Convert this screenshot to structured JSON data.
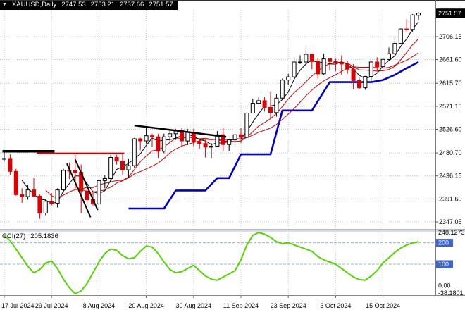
{
  "header": {
    "collapse_icon": "▼",
    "symbol": "XAUUSD,Daily",
    "open": "2747.53",
    "high": "2753.21",
    "low": "2737.66",
    "close": "2751.57"
  },
  "indicator": {
    "name": "CCI(27)",
    "value": "205.1836"
  },
  "colors": {
    "background": "#ffffff",
    "grid": "#c8c8c8",
    "bull_fill": "#ffffff",
    "bull_border": "#000000",
    "bear": "#dd0000",
    "ma_black": "#000000",
    "ma_red": "#cc0000",
    "support_blue": "#0000cc",
    "cci_green": "#55d400",
    "level_line": "#9ab4d8",
    "level_badge": "#3c64d0",
    "axis_text": "#000000",
    "price_badge_bg": "#000000",
    "price_badge_text": "#ffffff"
  },
  "chart_data": {
    "type": "candlestick",
    "title": "XAUUSD,Daily",
    "current_price": 2751.57,
    "ohlc_display": {
      "open": 2747.53,
      "high": 2753.21,
      "low": 2737.66,
      "close": 2751.57
    },
    "y_ticks": [
      2706.15,
      2661.6,
      2615.7,
      2571.15,
      2526.6,
      2480.7,
      2436.15,
      2391.6,
      2347.05
    ],
    "x_labels": [
      "17 Jul 2024",
      "29 Jul 2024",
      "8 Aug 2024",
      "20 Aug 2024",
      "30 Aug 2024",
      "11 Sep 2024",
      "23 Sep 2024",
      "3 Oct 2024",
      "15 Oct 2024"
    ],
    "x_label_step": 8,
    "candles": [
      [
        2469,
        2483,
        2464,
        2470
      ],
      [
        2470,
        2478,
        2438,
        2445
      ],
      [
        2445,
        2450,
        2398,
        2400
      ],
      [
        2400,
        2412,
        2384,
        2396
      ],
      [
        2396,
        2418,
        2390,
        2409
      ],
      [
        2409,
        2432,
        2396,
        2397
      ],
      [
        2397,
        2400,
        2353,
        2364
      ],
      [
        2364,
        2392,
        2360,
        2387
      ],
      [
        2387,
        2403,
        2379,
        2383
      ],
      [
        2383,
        2412,
        2375,
        2409
      ],
      [
        2409,
        2450,
        2404,
        2447
      ],
      [
        2447,
        2462,
        2430,
        2446
      ],
      [
        2446,
        2477,
        2410,
        2443
      ],
      [
        2443,
        2458,
        2364,
        2407
      ],
      [
        2407,
        2419,
        2379,
        2390
      ],
      [
        2390,
        2407,
        2379,
        2382
      ],
      [
        2382,
        2428,
        2373,
        2427
      ],
      [
        2427,
        2437,
        2412,
        2431
      ],
      [
        2431,
        2477,
        2424,
        2472
      ],
      [
        2472,
        2477,
        2458,
        2465
      ],
      [
        2465,
        2480,
        2439,
        2448
      ],
      [
        2448,
        2470,
        2432,
        2456
      ],
      [
        2456,
        2510,
        2452,
        2508
      ],
      [
        2508,
        2510,
        2486,
        2504
      ],
      [
        2504,
        2531,
        2499,
        2514
      ],
      [
        2514,
        2518,
        2493,
        2512
      ],
      [
        2512,
        2518,
        2471,
        2484
      ],
      [
        2484,
        2518,
        2480,
        2512
      ],
      [
        2512,
        2525,
        2503,
        2518
      ],
      [
        2518,
        2527,
        2506,
        2524
      ],
      [
        2524,
        2529,
        2493,
        2504
      ],
      [
        2504,
        2527,
        2496,
        2521
      ],
      [
        2521,
        2527,
        2494,
        2503
      ],
      [
        2503,
        2507,
        2489,
        2499
      ],
      [
        2499,
        2506,
        2472,
        2492
      ],
      [
        2492,
        2500,
        2471,
        2494
      ],
      [
        2494,
        2523,
        2492,
        2516
      ],
      [
        2516,
        2529,
        2485,
        2497
      ],
      [
        2497,
        2507,
        2485,
        2506
      ],
      [
        2506,
        2518,
        2500,
        2516
      ],
      [
        2516,
        2529,
        2500,
        2511
      ],
      [
        2511,
        2560,
        2511,
        2558
      ],
      [
        2558,
        2586,
        2557,
        2577
      ],
      [
        2577,
        2589,
        2575,
        2582
      ],
      [
        2582,
        2590,
        2561,
        2569
      ],
      [
        2569,
        2600,
        2546,
        2559
      ],
      [
        2559,
        2595,
        2551,
        2587
      ],
      [
        2587,
        2625,
        2585,
        2622
      ],
      [
        2622,
        2634,
        2613,
        2628
      ],
      [
        2628,
        2664,
        2623,
        2657
      ],
      [
        2657,
        2670,
        2653,
        2657
      ],
      [
        2657,
        2685,
        2650,
        2672
      ],
      [
        2672,
        2673,
        2643,
        2658
      ],
      [
        2658,
        2665,
        2625,
        2634
      ],
      [
        2634,
        2673,
        2632,
        2663
      ],
      [
        2663,
        2663,
        2641,
        2658
      ],
      [
        2658,
        2663,
        2639,
        2656
      ],
      [
        2656,
        2670,
        2632,
        2653
      ],
      [
        2653,
        2659,
        2634,
        2643
      ],
      [
        2643,
        2653,
        2604,
        2621
      ],
      [
        2621,
        2626,
        2605,
        2607
      ],
      [
        2607,
        2630,
        2603,
        2629
      ],
      [
        2629,
        2659,
        2618,
        2657
      ],
      [
        2657,
        2666,
        2639,
        2648
      ],
      [
        2648,
        2666,
        2639,
        2662
      ],
      [
        2662,
        2685,
        2660,
        2673
      ],
      [
        2673,
        2707,
        2669,
        2693
      ],
      [
        2693,
        2722,
        2692,
        2721
      ],
      [
        2721,
        2740,
        2716,
        2720
      ],
      [
        2720,
        2750,
        2715,
        2748
      ],
      [
        2747.53,
        2753.21,
        2737.66,
        2751.57
      ]
    ],
    "ma_periods": {
      "black": 4,
      "red_fast": 8,
      "red_slow": 13
    },
    "support_line": {
      "points": [
        [
          21,
          2373
        ],
        [
          27,
          2373
        ],
        [
          29,
          2408
        ],
        [
          34,
          2408
        ],
        [
          36,
          2432
        ],
        [
          38,
          2432
        ],
        [
          40,
          2478
        ],
        [
          45,
          2478
        ],
        [
          47,
          2563
        ],
        [
          52,
          2563
        ],
        [
          55,
          2618
        ],
        [
          62,
          2618
        ],
        [
          64,
          2622
        ],
        [
          66,
          2632
        ],
        [
          68,
          2645
        ],
        [
          70,
          2657
        ]
      ]
    },
    "trendlines": [
      {
        "b1": -0.3,
        "p1": 2484,
        "b2": 8.5,
        "p2": 2484,
        "color": "#000000",
        "w": 3.5
      },
      {
        "b1": 5.5,
        "p1": 2480,
        "b2": 20.3,
        "p2": 2480,
        "color": "#cc0000",
        "w": 2
      },
      {
        "b1": 22,
        "p1": 2534,
        "b2": 37.5,
        "p2": 2512,
        "color": "#000000",
        "w": 2.5
      },
      {
        "b1": 10.6,
        "p1": 2460,
        "b2": 14.6,
        "p2": 2356,
        "color": "#000000",
        "w": 2
      },
      {
        "b1": 12.0,
        "p1": 2468,
        "b2": 15.8,
        "p2": 2370,
        "color": "#000000",
        "w": 2
      }
    ],
    "cci": {
      "period": 27,
      "current": 205.1836,
      "max": 248.1273,
      "min": -38.1801,
      "levels": [
        200,
        100
      ],
      "values": [
        235,
        210,
        170,
        130,
        90,
        60,
        75,
        105,
        115,
        80,
        30,
        -10,
        -38.1801,
        -25,
        10,
        60,
        110,
        150,
        170,
        165,
        140,
        125,
        130,
        160,
        185,
        180,
        150,
        110,
        75,
        60,
        65,
        80,
        95,
        70,
        45,
        30,
        25,
        40,
        55,
        70,
        120,
        190,
        235,
        248.1273,
        240,
        225,
        205,
        195,
        200,
        190,
        180,
        170,
        160,
        135,
        120,
        110,
        100,
        80,
        60,
        40,
        28,
        25,
        45,
        70,
        105,
        130,
        155,
        175,
        190,
        198,
        205.1836
      ]
    }
  }
}
